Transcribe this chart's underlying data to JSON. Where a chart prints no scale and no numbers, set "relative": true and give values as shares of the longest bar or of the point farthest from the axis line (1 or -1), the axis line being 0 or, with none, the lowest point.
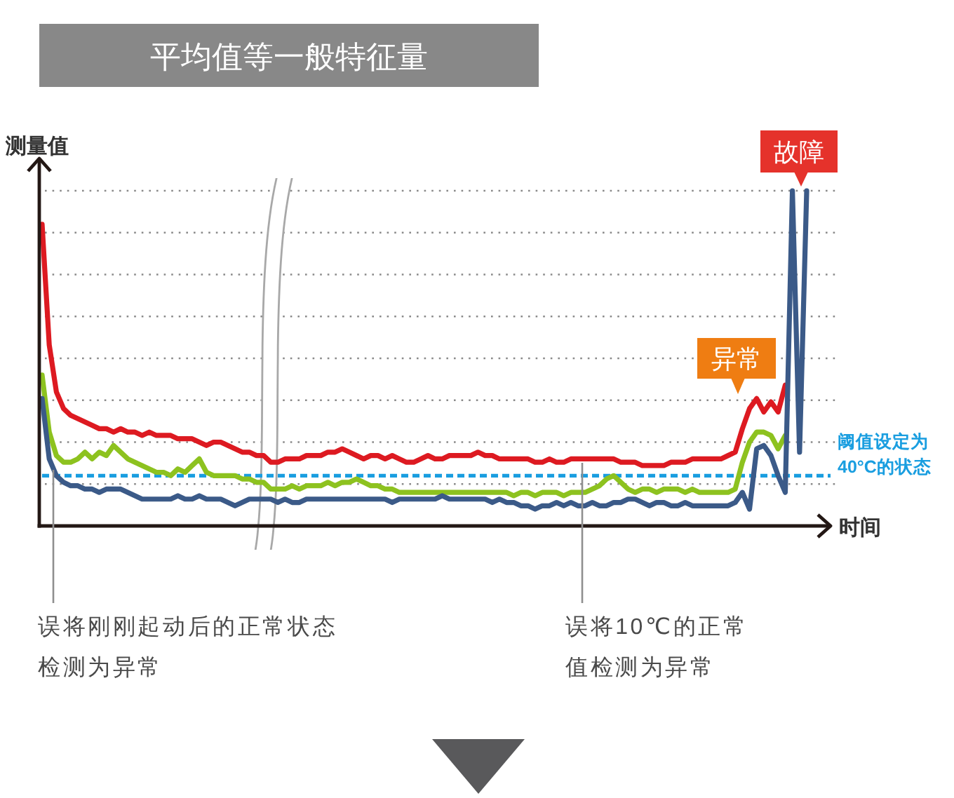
{
  "chart_data": {
    "type": "line",
    "title": "平均值等一般特征量",
    "xlabel": "时间",
    "ylabel": "测量值",
    "relative": true,
    "grid": "y",
    "categories": [
      null,
      null,
      null,
      null,
      null,
      null,
      null,
      null,
      null,
      null,
      null,
      null,
      null,
      null,
      null,
      null,
      null,
      null,
      null,
      null,
      null,
      null,
      null,
      null,
      null,
      null,
      null,
      null,
      null,
      null,
      null,
      null,
      null,
      null,
      null,
      null,
      null,
      null,
      null,
      null,
      null,
      null,
      null,
      null,
      null,
      null,
      null,
      null,
      null,
      null,
      null,
      null,
      null,
      null,
      null,
      null,
      null,
      null,
      null,
      null,
      null,
      null,
      null,
      null,
      null,
      null,
      null,
      null,
      null,
      null,
      null,
      null,
      null,
      null,
      null,
      null,
      null,
      null,
      null,
      null,
      null,
      null,
      null,
      null,
      null,
      null,
      null,
      null,
      null,
      null,
      null,
      null,
      null,
      null,
      null,
      null,
      null,
      null,
      null,
      null,
      null,
      null,
      null,
      null,
      null,
      null,
      null,
      null
    ],
    "series": [
      {
        "color": "#dd1a21",
        "values": [
          0.9,
          0.54,
          0.4,
          0.35,
          0.33,
          0.32,
          0.31,
          0.3,
          0.29,
          0.29,
          0.28,
          0.29,
          0.28,
          0.28,
          0.27,
          0.28,
          0.27,
          0.27,
          0.27,
          0.26,
          0.26,
          0.26,
          0.25,
          0.24,
          0.25,
          0.25,
          0.24,
          0.23,
          0.22,
          0.22,
          0.21,
          0.21,
          0.19,
          0.19,
          0.2,
          0.2,
          0.2,
          0.21,
          0.21,
          0.21,
          0.22,
          0.22,
          0.23,
          0.22,
          0.21,
          0.2,
          0.21,
          0.21,
          0.2,
          0.21,
          0.2,
          0.19,
          0.19,
          0.2,
          0.21,
          0.2,
          0.2,
          0.21,
          0.21,
          0.21,
          0.21,
          0.22,
          0.21,
          0.21,
          0.2,
          0.2,
          0.2,
          0.2,
          0.2,
          0.19,
          0.19,
          0.2,
          0.19,
          0.19,
          0.2,
          0.2,
          0.2,
          0.2,
          0.2,
          0.2,
          0.2,
          0.19,
          0.19,
          0.19,
          0.18,
          0.18,
          0.18,
          0.18,
          0.19,
          0.19,
          0.19,
          0.2,
          0.2,
          0.2,
          0.2,
          0.2,
          0.21,
          0.22,
          0.29,
          0.35,
          0.38,
          0.34,
          0.37,
          0.34,
          0.42,
          null,
          null,
          null
        ]
      },
      {
        "color": "#8dc21f",
        "values": [
          0.45,
          0.28,
          0.21,
          0.19,
          0.19,
          0.2,
          0.22,
          0.2,
          0.22,
          0.21,
          0.24,
          0.22,
          0.2,
          0.19,
          0.18,
          0.17,
          0.16,
          0.16,
          0.15,
          0.17,
          0.16,
          0.18,
          0.2,
          0.16,
          0.15,
          0.15,
          0.15,
          0.15,
          0.14,
          0.14,
          0.13,
          0.13,
          0.11,
          0.11,
          0.11,
          0.12,
          0.11,
          0.12,
          0.12,
          0.12,
          0.13,
          0.12,
          0.13,
          0.13,
          0.14,
          0.13,
          0.12,
          0.12,
          0.11,
          0.11,
          0.1,
          0.1,
          0.1,
          0.1,
          0.1,
          0.1,
          0.1,
          0.1,
          0.1,
          0.1,
          0.1,
          0.1,
          0.1,
          0.1,
          0.1,
          0.1,
          0.09,
          0.1,
          0.1,
          0.09,
          0.1,
          0.1,
          0.1,
          0.09,
          0.1,
          0.1,
          0.1,
          0.11,
          0.12,
          0.14,
          0.15,
          0.13,
          0.11,
          0.1,
          0.11,
          0.11,
          0.1,
          0.11,
          0.11,
          0.11,
          0.1,
          0.11,
          0.1,
          0.1,
          0.1,
          0.1,
          0.1,
          0.11,
          0.19,
          0.25,
          0.28,
          0.28,
          0.27,
          0.23,
          0.27,
          null,
          null,
          null
        ]
      },
      {
        "color": "#3b5a88",
        "values": [
          0.38,
          0.2,
          0.15,
          0.13,
          0.12,
          0.12,
          0.11,
          0.11,
          0.1,
          0.11,
          0.11,
          0.11,
          0.1,
          0.09,
          0.08,
          0.08,
          0.08,
          0.08,
          0.08,
          0.09,
          0.08,
          0.08,
          0.09,
          0.08,
          0.08,
          0.08,
          0.07,
          0.06,
          0.07,
          0.08,
          0.08,
          0.08,
          0.08,
          0.07,
          0.08,
          0.07,
          0.07,
          0.08,
          0.08,
          0.08,
          0.08,
          0.08,
          0.08,
          0.08,
          0.08,
          0.08,
          0.08,
          0.08,
          0.08,
          0.07,
          0.08,
          0.08,
          0.08,
          0.08,
          0.08,
          0.08,
          0.09,
          0.08,
          0.08,
          0.08,
          0.08,
          0.08,
          0.08,
          0.07,
          0.08,
          0.07,
          0.07,
          0.06,
          0.06,
          0.05,
          0.06,
          0.06,
          0.07,
          0.06,
          0.07,
          0.06,
          0.06,
          0.07,
          0.06,
          0.06,
          0.07,
          0.07,
          0.08,
          0.08,
          0.07,
          0.06,
          0.07,
          0.07,
          0.06,
          0.06,
          0.07,
          0.06,
          0.06,
          0.06,
          0.06,
          0.06,
          0.06,
          0.07,
          0.1,
          0.05,
          0.23,
          0.24,
          0.21,
          0.15,
          0.1,
          1.0,
          0.22,
          1.0
        ]
      }
    ],
    "ref_lines": [
      {
        "axis": "y",
        "value": 0.15,
        "label": "阈值设定为40°C的状态",
        "color": "#1a9ee0",
        "line_style": "dashed"
      }
    ],
    "annotations": [
      "异常",
      "故障",
      "误将刚刚起动后的正常状态检测为异常",
      "误将10℃的正常值检测为异常"
    ]
  }
}
